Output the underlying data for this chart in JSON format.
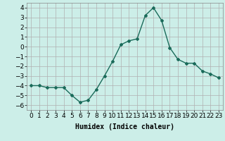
{
  "x": [
    0,
    1,
    2,
    3,
    4,
    5,
    6,
    7,
    8,
    9,
    10,
    11,
    12,
    13,
    14,
    15,
    16,
    17,
    18,
    19,
    20,
    21,
    22,
    23
  ],
  "y": [
    -4.0,
    -4.0,
    -4.2,
    -4.2,
    -4.2,
    -5.0,
    -5.7,
    -5.5,
    -4.4,
    -3.0,
    -1.5,
    0.2,
    0.6,
    0.8,
    3.2,
    4.0,
    2.7,
    -0.1,
    -1.3,
    -1.7,
    -1.7,
    -2.5,
    -2.8,
    -3.2
  ],
  "line_color": "#1a6b5a",
  "marker": "D",
  "marker_size": 2.0,
  "linewidth": 1.0,
  "xlabel": "Humidex (Indice chaleur)",
  "xlabel_fontsize": 7,
  "bg_color": "#cceee8",
  "grid_color": "#b0b0b0",
  "tick_label_fontsize": 6.5,
  "ylim": [
    -6.5,
    4.5
  ],
  "xlim": [
    -0.5,
    23.5
  ],
  "yticks": [
    -6,
    -5,
    -4,
    -3,
    -2,
    -1,
    0,
    1,
    2,
    3,
    4
  ],
  "xticks": [
    0,
    1,
    2,
    3,
    4,
    5,
    6,
    7,
    8,
    9,
    10,
    11,
    12,
    13,
    14,
    15,
    16,
    17,
    18,
    19,
    20,
    21,
    22,
    23
  ]
}
